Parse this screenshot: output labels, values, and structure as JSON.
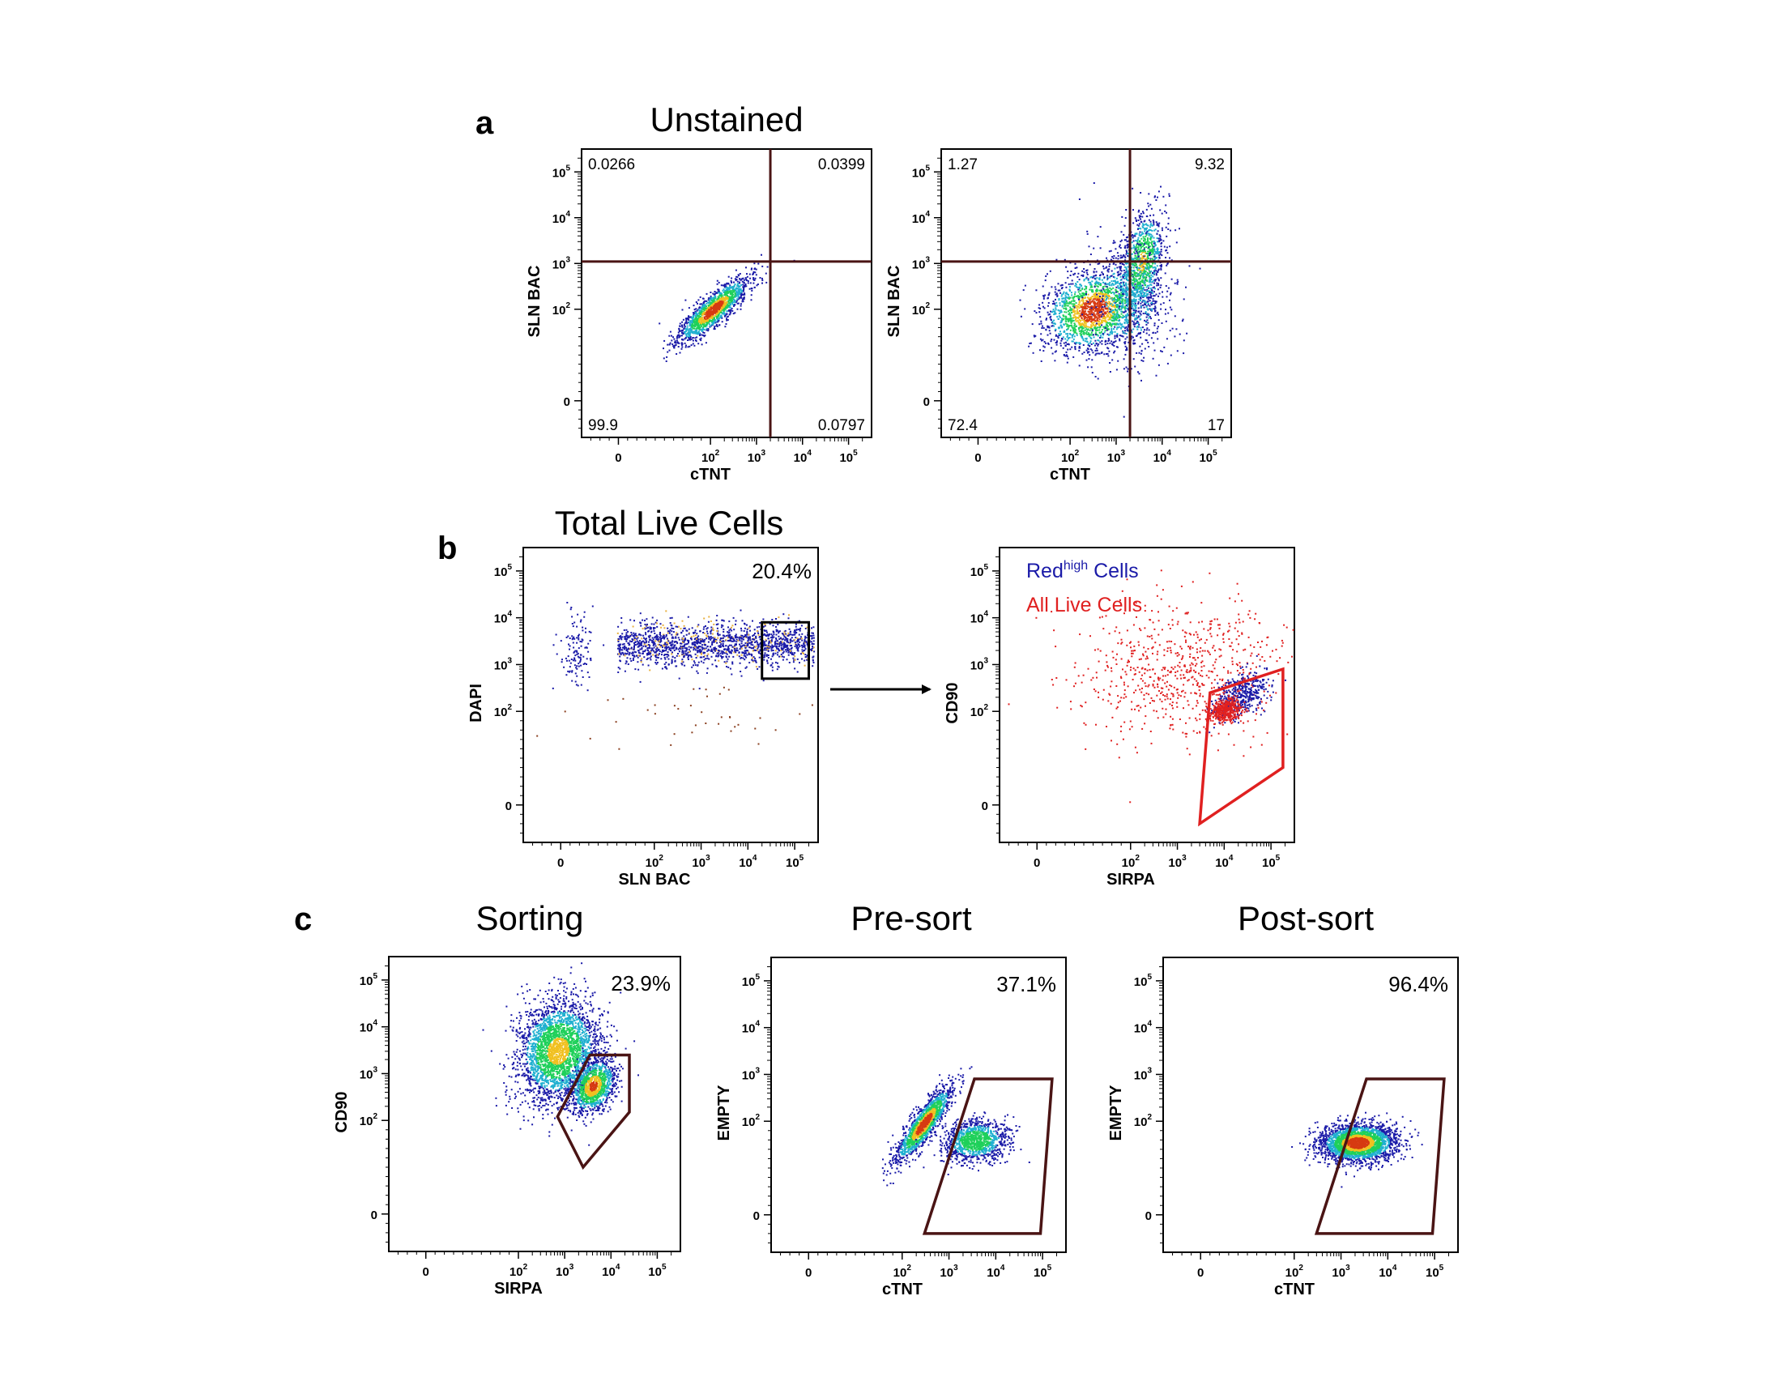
{
  "panels": {
    "a": "a",
    "b": "b",
    "c": "c"
  },
  "titles": {
    "unstained": "Unstained",
    "total_live": "Total Live Cells",
    "sorting": "Sorting",
    "presort": "Pre-sort",
    "postsort": "Post-sort"
  },
  "colors": {
    "density_low": "#1a1aa8",
    "density_mid": "#1fd05a",
    "density_high": "#d63a12",
    "gate": "#4a1414",
    "red_gate": "#e02020",
    "blue_series": "#1a1aa8",
    "red_series": "#e02020"
  },
  "chart_data": [
    {
      "id": "a1",
      "type": "scatter",
      "subtype": "density-quadrant",
      "title": "Unstained",
      "xlabel": "cTNT",
      "ylabel": "SLN BAC",
      "scale": "biexponential",
      "x_ticks": [
        "0",
        "10^2",
        "10^3",
        "10^4",
        "10^5"
      ],
      "y_ticks": [
        "0",
        "10^2",
        "10^3",
        "10^4",
        "10^5"
      ],
      "quadrants": {
        "top_left": "0.0266",
        "top_right": "0.0399",
        "bottom_left": "99.9",
        "bottom_right": "0.0797"
      },
      "quadrant_divider": {
        "x": 2000,
        "y": 1100
      },
      "populations": [
        {
          "x_center": 130,
          "y_center": 110
        }
      ]
    },
    {
      "id": "a2",
      "type": "scatter",
      "subtype": "density-quadrant",
      "title": "",
      "xlabel": "cTNT",
      "ylabel": "SLN BAC",
      "scale": "biexponential",
      "x_ticks": [
        "0",
        "10^2",
        "10^3",
        "10^4",
        "10^5"
      ],
      "y_ticks": [
        "0",
        "10^2",
        "10^3",
        "10^4",
        "10^5"
      ],
      "quadrants": {
        "top_left": "1.27",
        "top_right": "9.32",
        "bottom_left": "72.4",
        "bottom_right": "17"
      },
      "quadrant_divider": {
        "x": 2000,
        "y": 1100
      },
      "populations": [
        {
          "x_center": 350,
          "y_center": 120
        },
        {
          "x_center": 4000,
          "y_center": 1200
        }
      ]
    },
    {
      "id": "b1",
      "type": "scatter",
      "subtype": "gate",
      "title": "Total Live Cells",
      "xlabel": "SLN BAC",
      "ylabel": "DAPI",
      "scale": "biexponential",
      "x_ticks": [
        "0",
        "10^2",
        "10^3",
        "10^4",
        "10^5"
      ],
      "y_ticks": [
        "0",
        "10^2",
        "10^3",
        "10^4",
        "10^5"
      ],
      "gate_percent": "20.4%",
      "gate_rect": {
        "x": [
          20000,
          200000
        ],
        "y": [
          500,
          8000
        ]
      }
    },
    {
      "id": "b2",
      "type": "scatter",
      "subtype": "overlay",
      "title": "",
      "xlabel": "SIRPA",
      "ylabel": "CD90",
      "scale": "biexponential",
      "x_ticks": [
        "0",
        "10^2",
        "10^3",
        "10^4",
        "10^5"
      ],
      "y_ticks": [
        "0",
        "10^2",
        "10^3",
        "10^4",
        "10^5"
      ],
      "legend": {
        "red_prefix": "Red",
        "red_sup": "high",
        "red_suffix": " Cells",
        "all_live": "All Live Cells"
      },
      "series": [
        {
          "name": "Red high Cells",
          "color": "blue"
        },
        {
          "name": "All Live Cells",
          "color": "red"
        }
      ],
      "gate_polygon": [
        [
          3000,
          -40
        ],
        [
          5000,
          250
        ],
        [
          180000,
          800
        ],
        [
          180000,
          40
        ]
      ]
    },
    {
      "id": "c1",
      "type": "scatter",
      "subtype": "gate",
      "title": "Sorting",
      "xlabel": "SIRPA",
      "ylabel": "CD90",
      "scale": "biexponential",
      "x_ticks": [
        "0",
        "10^2",
        "10^3",
        "10^4",
        "10^5"
      ],
      "y_ticks": [
        "0",
        "10^2",
        "10^3",
        "10^4",
        "10^5"
      ],
      "gate_percent": "23.9%",
      "gate_polygon": [
        [
          700,
          120
        ],
        [
          3500,
          2500
        ],
        [
          25000,
          2500
        ],
        [
          25000,
          150
        ],
        [
          2500,
          50
        ]
      ]
    },
    {
      "id": "c2",
      "type": "scatter",
      "subtype": "gate",
      "title": "Pre-sort",
      "xlabel": "cTNT",
      "ylabel": "EMPTY",
      "scale": "biexponential",
      "x_ticks": [
        "0",
        "10^2",
        "10^3",
        "10^4",
        "10^5"
      ],
      "y_ticks": [
        "0",
        "10^2",
        "10^3",
        "10^4",
        "10^5"
      ],
      "gate_percent": "37.1%",
      "gate_polygon": [
        [
          300,
          -40
        ],
        [
          3500,
          800
        ],
        [
          160000,
          800
        ],
        [
          90000,
          -40
        ]
      ]
    },
    {
      "id": "c3",
      "type": "scatter",
      "subtype": "gate",
      "title": "Post-sort",
      "xlabel": "cTNT",
      "ylabel": "EMPTY",
      "scale": "biexponential",
      "x_ticks": [
        "0",
        "10^2",
        "10^3",
        "10^4",
        "10^5"
      ],
      "y_ticks": [
        "0",
        "10^2",
        "10^3",
        "10^4",
        "10^5"
      ],
      "gate_percent": "96.4%",
      "gate_polygon": [
        [
          300,
          -40
        ],
        [
          3500,
          800
        ],
        [
          160000,
          800
        ],
        [
          90000,
          -40
        ]
      ]
    }
  ]
}
